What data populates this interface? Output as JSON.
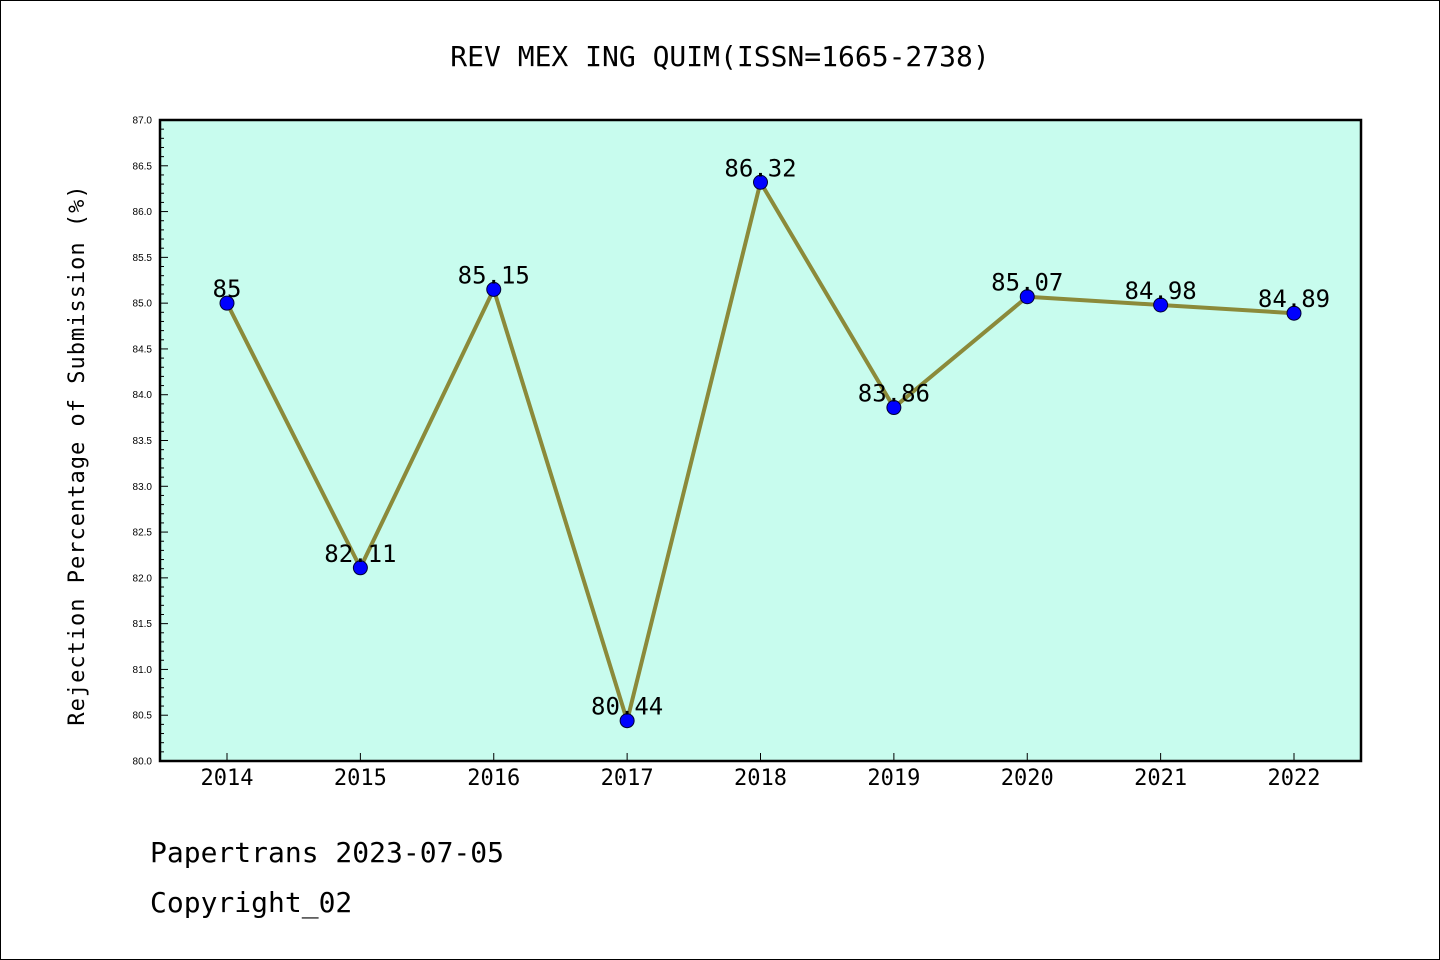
{
  "chart_data": {
    "type": "line",
    "title": "REV MEX ING QUIM(ISSN=1665-2738)",
    "xlabel": "",
    "ylabel": "Rejection Percentage of Submission (%)",
    "categories": [
      "2014",
      "2015",
      "2016",
      "2017",
      "2018",
      "2019",
      "2020",
      "2021",
      "2022"
    ],
    "values": [
      85,
      82.11,
      85.15,
      80.44,
      86.32,
      83.86,
      85.07,
      84.98,
      84.89
    ],
    "data_labels": [
      "85",
      "82.11",
      "85.15",
      "80.44",
      "86.32",
      "83.86",
      "85.07",
      "84.98",
      "84.89"
    ],
    "ylim": [
      80.0,
      87.0
    ],
    "yticks": [
      "80.0",
      "80.5",
      "81.0",
      "81.5",
      "82.0",
      "82.5",
      "83.0",
      "83.5",
      "84.0",
      "84.5",
      "85.0",
      "85.5",
      "86.0",
      "86.5",
      "87.0"
    ],
    "grid": false,
    "colors": {
      "plot_background": "#c8fcee",
      "line": "#8b8a3a",
      "marker": "#0000ff"
    }
  },
  "footer": {
    "line1": "Papertrans 2023-07-05",
    "line2": "Copyright_02"
  }
}
